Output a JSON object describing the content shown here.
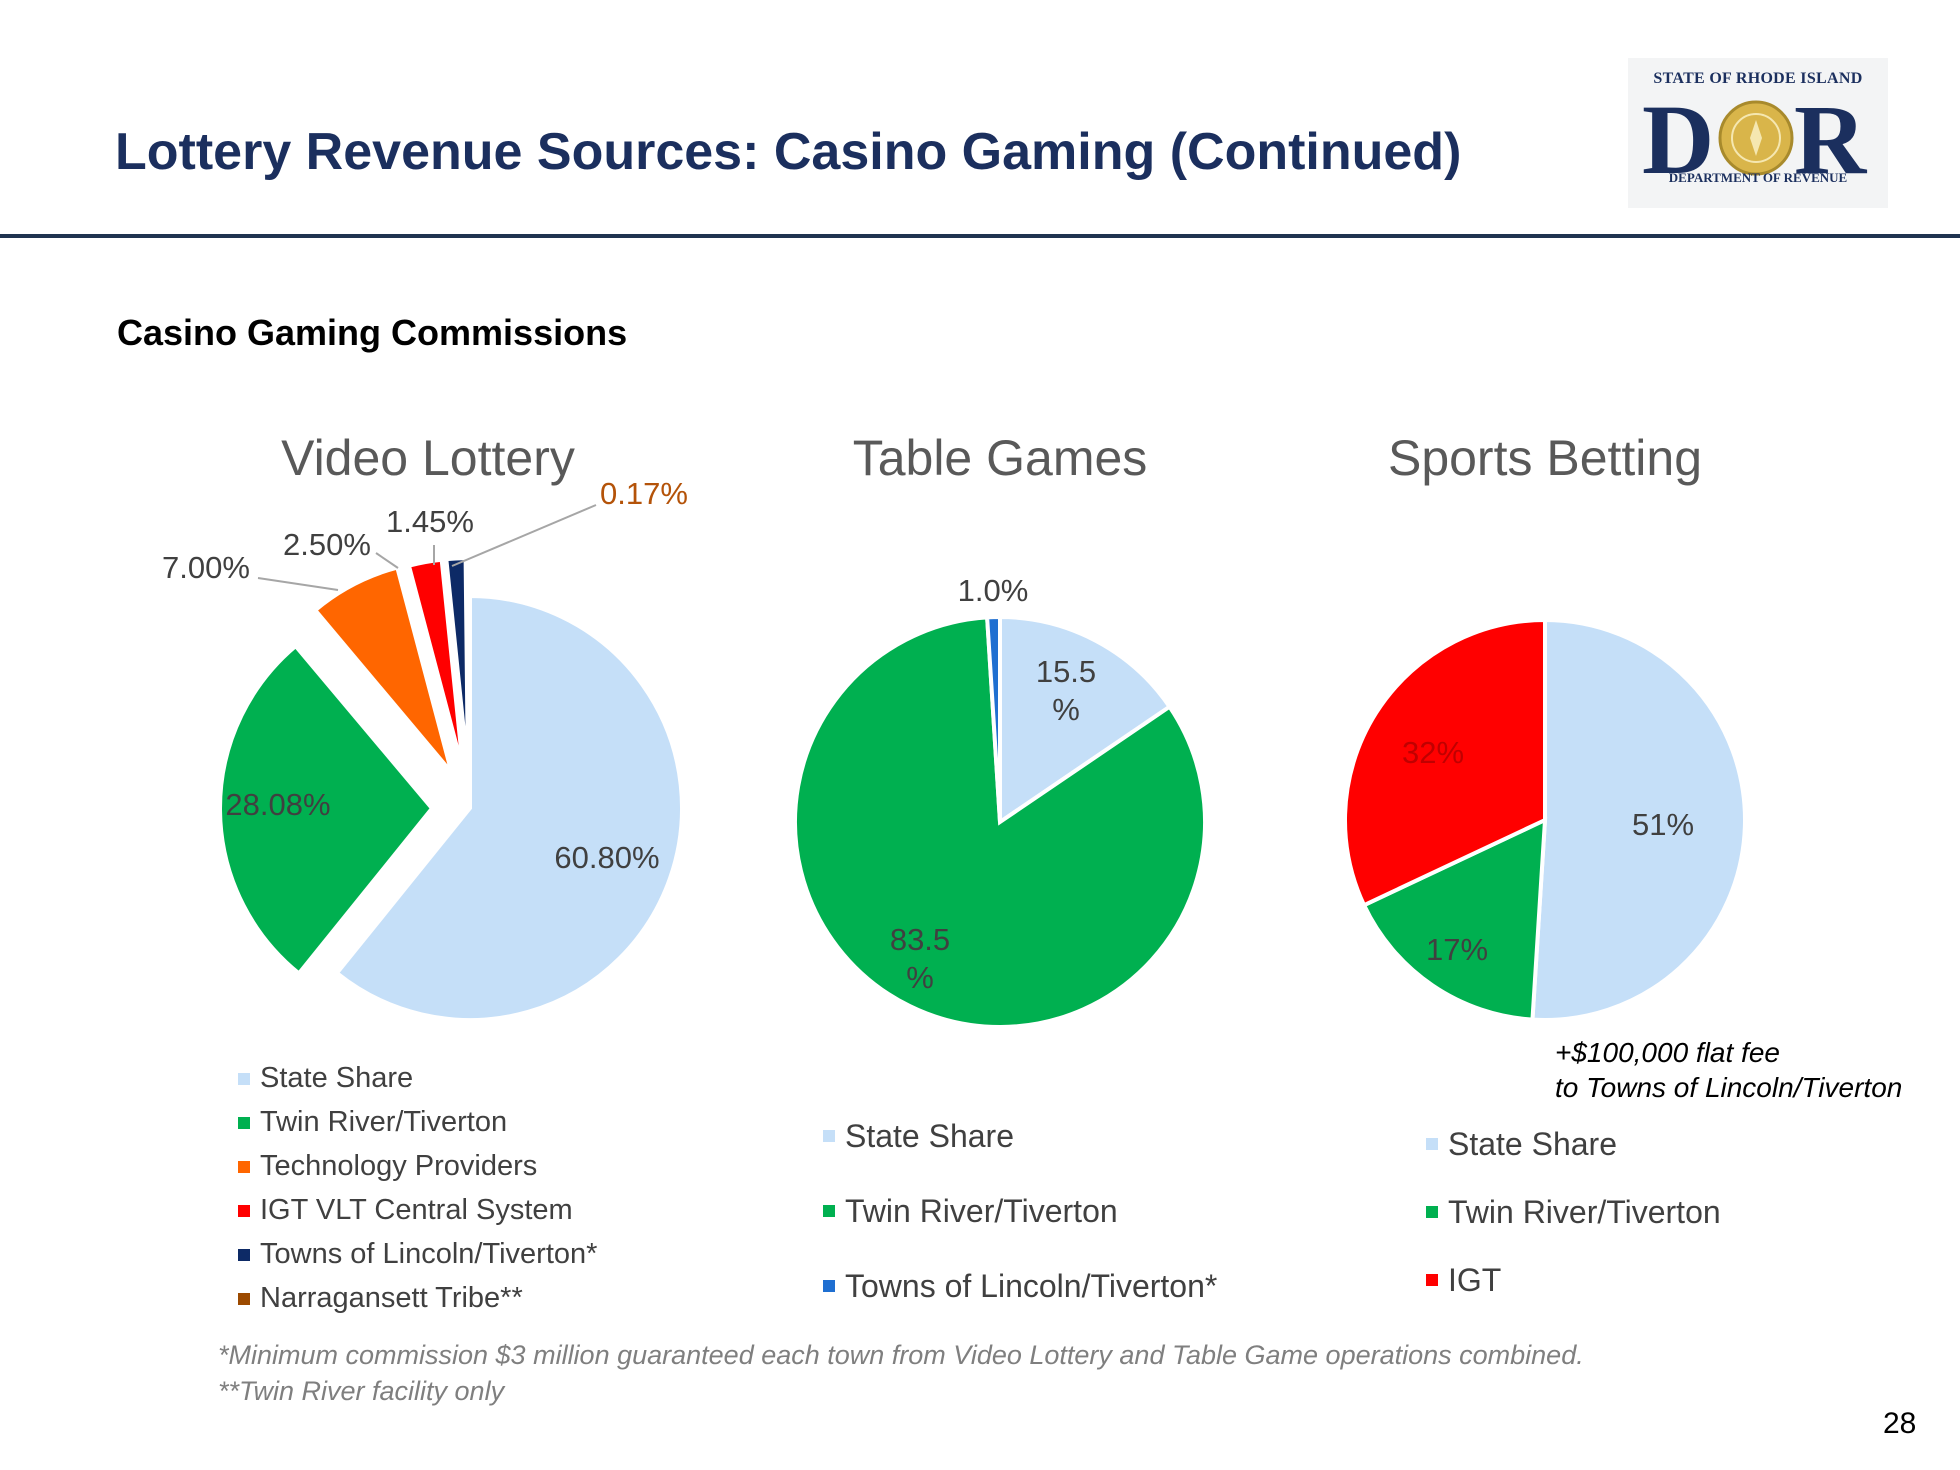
{
  "header": {
    "title": "Lottery Revenue Sources: Casino Gaming (Continued)",
    "logo_top": "STATE OF RHODE ISLAND",
    "logo_letters": "D",
    "logo_letters2": "R",
    "logo_bottom": "DEPARTMENT OF REVENUE"
  },
  "subtitle": "Casino Gaming Commissions",
  "colors": {
    "state_share": "#c5dff8",
    "twin_river": "#00b050",
    "technology": "#ff6600",
    "igt": "#ff0000",
    "towns": "#0d2a66",
    "narragansett": "#9c4a00",
    "towns_table": "#1f6fd1"
  },
  "chart_data": [
    {
      "type": "pie",
      "title": "Video Lottery",
      "categories": [
        "State Share",
        "Twin River/Tiverton",
        "Technology Providers",
        "IGT VLT Central System",
        "Towns of Lincoln/Tiverton*",
        "Narragansett Tribe**"
      ],
      "values": [
        60.8,
        28.08,
        7.0,
        2.5,
        1.45,
        0.17
      ],
      "labels": [
        "60.80%",
        "28.08%",
        "7.00%",
        "2.50%",
        "1.45%",
        "0.17%"
      ],
      "exploded": true,
      "legend": "bottom-left"
    },
    {
      "type": "pie",
      "title": "Table Games",
      "categories": [
        "State Share",
        "Twin River/Tiverton",
        "Towns of Lincoln/Tiverton*"
      ],
      "values": [
        15.5,
        83.5,
        1.0
      ],
      "labels": [
        "15.5\n%",
        "83.5\n%",
        "1.0%"
      ],
      "legend": "bottom"
    },
    {
      "type": "pie",
      "title": "Sports Betting",
      "categories": [
        "State Share",
        "Twin River/Tiverton",
        "IGT"
      ],
      "values": [
        51,
        17,
        32
      ],
      "labels": [
        "51%",
        "17%",
        "32%"
      ],
      "legend": "bottom"
    }
  ],
  "note": {
    "line1": "+$100,000 flat fee",
    "line2": "to Towns of Lincoln/Tiverton"
  },
  "footnotes": {
    "line1": "*Minimum commission $3 million guaranteed each town from Video Lottery and Table Game operations combined.",
    "line2": "**Twin River facility only"
  },
  "page_number": "28"
}
